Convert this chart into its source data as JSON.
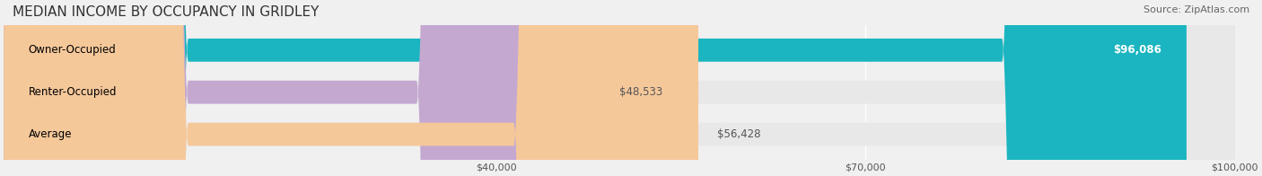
{
  "title": "MEDIAN INCOME BY OCCUPANCY IN GRIDLEY",
  "source": "Source: ZipAtlas.com",
  "categories": [
    "Owner-Occupied",
    "Renter-Occupied",
    "Average"
  ],
  "values": [
    96086,
    48533,
    56428
  ],
  "bar_colors": [
    "#1ab5c0",
    "#c4a8d0",
    "#f5c89a"
  ],
  "bar_edge_colors": [
    "#1ab5c0",
    "#c4a8d0",
    "#f5c89a"
  ],
  "value_labels": [
    "$96,086",
    "$48,533",
    "$56,428"
  ],
  "xlim": [
    0,
    100000
  ],
  "xticks": [
    40000,
    70000,
    100000
  ],
  "xtick_labels": [
    "$40,000",
    "$70,000",
    "$100,000"
  ],
  "background_color": "#f0f0f0",
  "bar_background_color": "#e8e8e8",
  "title_fontsize": 11,
  "source_fontsize": 8,
  "label_fontsize": 8.5,
  "value_fontsize": 8.5,
  "bar_height": 0.55
}
